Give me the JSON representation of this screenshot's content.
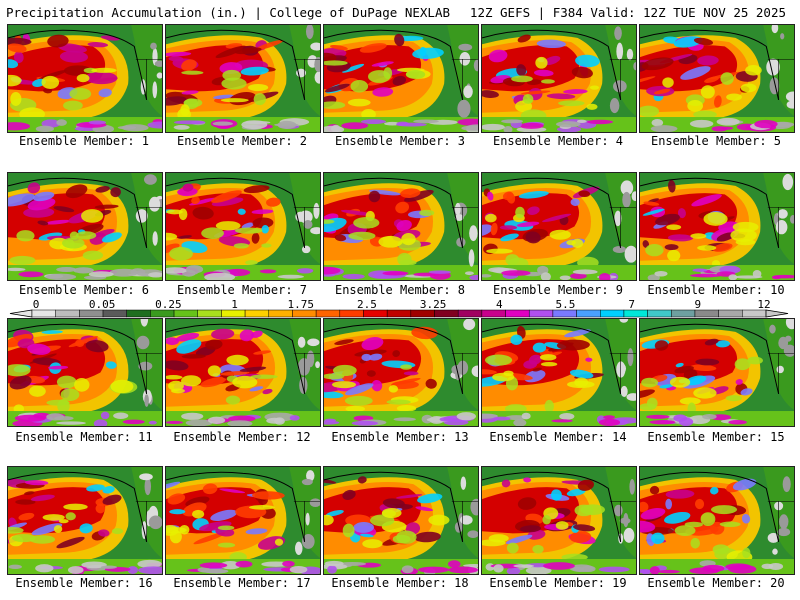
{
  "header": {
    "title": "Precipitation Accumulation (in.) | College of DuPage NEXLAB",
    "run_info": "12Z GEFS | F384 Valid: 12Z TUE NOV 25 2025"
  },
  "member_label_prefix": "Ensemble Member: ",
  "members": [
    1,
    2,
    3,
    4,
    5,
    6,
    7,
    8,
    9,
    10,
    11,
    12,
    13,
    14,
    15,
    16,
    17,
    18,
    19,
    20
  ],
  "colorbar": {
    "labels": [
      "0",
      "0.05",
      "0.25",
      "1",
      "1.75",
      "2.5",
      "3.25",
      "4",
      "5.5",
      "7",
      "9",
      "12"
    ],
    "colors": [
      "#e6e6e6",
      "#bdbdbd",
      "#8f8f8f",
      "#5a5a5a",
      "#1f6e1f",
      "#3a9a1e",
      "#66c21a",
      "#a8e01e",
      "#e8f000",
      "#ffd000",
      "#ffb000",
      "#ff8c00",
      "#ff6400",
      "#ff3c00",
      "#e60000",
      "#c00000",
      "#a00000",
      "#800020",
      "#a00060",
      "#c8008c",
      "#e000c0",
      "#b050f0",
      "#7a7aff",
      "#4aa0ff",
      "#00d0ff",
      "#00e8d8",
      "#40c8c8",
      "#6ea0a0",
      "#8a8a8a",
      "#a8a8a8",
      "#c8c8c8"
    ]
  },
  "colors": {
    "land": "#2e8b2e",
    "background": "#ffffff"
  }
}
